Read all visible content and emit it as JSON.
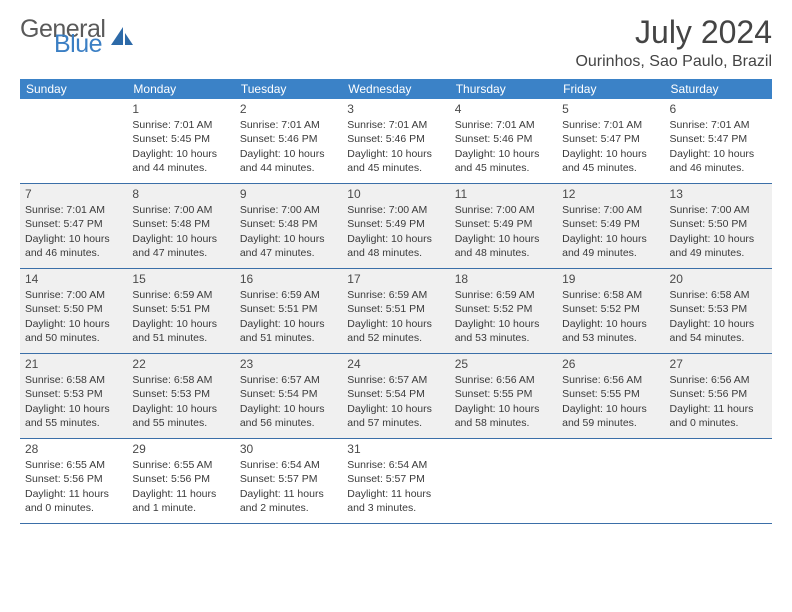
{
  "logo": {
    "text1": "General",
    "text2": "Blue"
  },
  "title": "July 2024",
  "location": "Ourinhos, Sao Paulo, Brazil",
  "styling": {
    "header_bg": "#3b82c7",
    "header_fg": "#ffffff",
    "shade_bg": "#f0f0f0",
    "row_border": "#3b6fa8",
    "text_color": "#3a3a3a",
    "title_color": "#444444",
    "logo_gray": "#5a5a5a",
    "logo_blue": "#3b7fc4",
    "font_family": "Arial",
    "day_num_fontsize": 12,
    "info_fontsize": 10.5,
    "title_fontsize": 32,
    "location_fontsize": 16,
    "header_fontsize": 12
  },
  "day_names": [
    "Sunday",
    "Monday",
    "Tuesday",
    "Wednesday",
    "Thursday",
    "Friday",
    "Saturday"
  ],
  "weeks": [
    {
      "shaded": false,
      "days": [
        null,
        {
          "n": "1",
          "sr": "Sunrise: 7:01 AM",
          "ss": "Sunset: 5:45 PM",
          "d1": "Daylight: 10 hours",
          "d2": "and 44 minutes."
        },
        {
          "n": "2",
          "sr": "Sunrise: 7:01 AM",
          "ss": "Sunset: 5:46 PM",
          "d1": "Daylight: 10 hours",
          "d2": "and 44 minutes."
        },
        {
          "n": "3",
          "sr": "Sunrise: 7:01 AM",
          "ss": "Sunset: 5:46 PM",
          "d1": "Daylight: 10 hours",
          "d2": "and 45 minutes."
        },
        {
          "n": "4",
          "sr": "Sunrise: 7:01 AM",
          "ss": "Sunset: 5:46 PM",
          "d1": "Daylight: 10 hours",
          "d2": "and 45 minutes."
        },
        {
          "n": "5",
          "sr": "Sunrise: 7:01 AM",
          "ss": "Sunset: 5:47 PM",
          "d1": "Daylight: 10 hours",
          "d2": "and 45 minutes."
        },
        {
          "n": "6",
          "sr": "Sunrise: 7:01 AM",
          "ss": "Sunset: 5:47 PM",
          "d1": "Daylight: 10 hours",
          "d2": "and 46 minutes."
        }
      ]
    },
    {
      "shaded": true,
      "days": [
        {
          "n": "7",
          "sr": "Sunrise: 7:01 AM",
          "ss": "Sunset: 5:47 PM",
          "d1": "Daylight: 10 hours",
          "d2": "and 46 minutes."
        },
        {
          "n": "8",
          "sr": "Sunrise: 7:00 AM",
          "ss": "Sunset: 5:48 PM",
          "d1": "Daylight: 10 hours",
          "d2": "and 47 minutes."
        },
        {
          "n": "9",
          "sr": "Sunrise: 7:00 AM",
          "ss": "Sunset: 5:48 PM",
          "d1": "Daylight: 10 hours",
          "d2": "and 47 minutes."
        },
        {
          "n": "10",
          "sr": "Sunrise: 7:00 AM",
          "ss": "Sunset: 5:49 PM",
          "d1": "Daylight: 10 hours",
          "d2": "and 48 minutes."
        },
        {
          "n": "11",
          "sr": "Sunrise: 7:00 AM",
          "ss": "Sunset: 5:49 PM",
          "d1": "Daylight: 10 hours",
          "d2": "and 48 minutes."
        },
        {
          "n": "12",
          "sr": "Sunrise: 7:00 AM",
          "ss": "Sunset: 5:49 PM",
          "d1": "Daylight: 10 hours",
          "d2": "and 49 minutes."
        },
        {
          "n": "13",
          "sr": "Sunrise: 7:00 AM",
          "ss": "Sunset: 5:50 PM",
          "d1": "Daylight: 10 hours",
          "d2": "and 49 minutes."
        }
      ]
    },
    {
      "shaded": true,
      "days": [
        {
          "n": "14",
          "sr": "Sunrise: 7:00 AM",
          "ss": "Sunset: 5:50 PM",
          "d1": "Daylight: 10 hours",
          "d2": "and 50 minutes."
        },
        {
          "n": "15",
          "sr": "Sunrise: 6:59 AM",
          "ss": "Sunset: 5:51 PM",
          "d1": "Daylight: 10 hours",
          "d2": "and 51 minutes."
        },
        {
          "n": "16",
          "sr": "Sunrise: 6:59 AM",
          "ss": "Sunset: 5:51 PM",
          "d1": "Daylight: 10 hours",
          "d2": "and 51 minutes."
        },
        {
          "n": "17",
          "sr": "Sunrise: 6:59 AM",
          "ss": "Sunset: 5:51 PM",
          "d1": "Daylight: 10 hours",
          "d2": "and 52 minutes."
        },
        {
          "n": "18",
          "sr": "Sunrise: 6:59 AM",
          "ss": "Sunset: 5:52 PM",
          "d1": "Daylight: 10 hours",
          "d2": "and 53 minutes."
        },
        {
          "n": "19",
          "sr": "Sunrise: 6:58 AM",
          "ss": "Sunset: 5:52 PM",
          "d1": "Daylight: 10 hours",
          "d2": "and 53 minutes."
        },
        {
          "n": "20",
          "sr": "Sunrise: 6:58 AM",
          "ss": "Sunset: 5:53 PM",
          "d1": "Daylight: 10 hours",
          "d2": "and 54 minutes."
        }
      ]
    },
    {
      "shaded": true,
      "days": [
        {
          "n": "21",
          "sr": "Sunrise: 6:58 AM",
          "ss": "Sunset: 5:53 PM",
          "d1": "Daylight: 10 hours",
          "d2": "and 55 minutes."
        },
        {
          "n": "22",
          "sr": "Sunrise: 6:58 AM",
          "ss": "Sunset: 5:53 PM",
          "d1": "Daylight: 10 hours",
          "d2": "and 55 minutes."
        },
        {
          "n": "23",
          "sr": "Sunrise: 6:57 AM",
          "ss": "Sunset: 5:54 PM",
          "d1": "Daylight: 10 hours",
          "d2": "and 56 minutes."
        },
        {
          "n": "24",
          "sr": "Sunrise: 6:57 AM",
          "ss": "Sunset: 5:54 PM",
          "d1": "Daylight: 10 hours",
          "d2": "and 57 minutes."
        },
        {
          "n": "25",
          "sr": "Sunrise: 6:56 AM",
          "ss": "Sunset: 5:55 PM",
          "d1": "Daylight: 10 hours",
          "d2": "and 58 minutes."
        },
        {
          "n": "26",
          "sr": "Sunrise: 6:56 AM",
          "ss": "Sunset: 5:55 PM",
          "d1": "Daylight: 10 hours",
          "d2": "and 59 minutes."
        },
        {
          "n": "27",
          "sr": "Sunrise: 6:56 AM",
          "ss": "Sunset: 5:56 PM",
          "d1": "Daylight: 11 hours",
          "d2": "and 0 minutes."
        }
      ]
    },
    {
      "shaded": false,
      "days": [
        {
          "n": "28",
          "sr": "Sunrise: 6:55 AM",
          "ss": "Sunset: 5:56 PM",
          "d1": "Daylight: 11 hours",
          "d2": "and 0 minutes."
        },
        {
          "n": "29",
          "sr": "Sunrise: 6:55 AM",
          "ss": "Sunset: 5:56 PM",
          "d1": "Daylight: 11 hours",
          "d2": "and 1 minute."
        },
        {
          "n": "30",
          "sr": "Sunrise: 6:54 AM",
          "ss": "Sunset: 5:57 PM",
          "d1": "Daylight: 11 hours",
          "d2": "and 2 minutes."
        },
        {
          "n": "31",
          "sr": "Sunrise: 6:54 AM",
          "ss": "Sunset: 5:57 PM",
          "d1": "Daylight: 11 hours",
          "d2": "and 3 minutes."
        },
        null,
        null,
        null
      ]
    }
  ]
}
